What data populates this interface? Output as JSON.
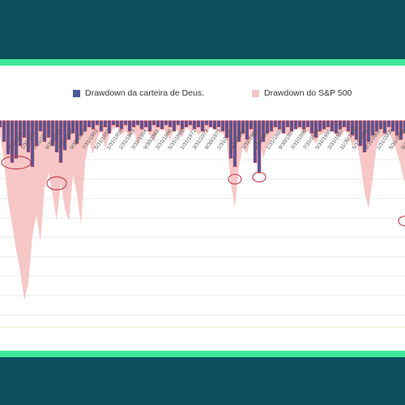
{
  "colors": {
    "frame": "#0b4f5c",
    "accent": "#3ee89a",
    "portfolio_fill": "#4a5a9c",
    "portfolio_edge": "#d0344a",
    "sp_fill": "#f7c4c4",
    "highlight_ellipse": "#c8424e"
  },
  "legend": {
    "portfolio_label": "Drawdown da carteira de Deus.",
    "sp_label": "Drawdown do S&P 500"
  },
  "chart_data": {
    "type": "area",
    "title": "",
    "xlabel": "",
    "ylabel": "",
    "grid": true,
    "legend_position": "top",
    "x_tick_labels": [
      "3/31/191",
      "1/31/193",
      "7/31/19",
      "9/30/1947",
      "3/31/1949",
      "9/30/1950",
      "7/31/1953",
      "5/31/1957",
      "1/31/1959",
      "1/31/1963",
      "3/31/1964",
      "9/30/1961",
      "3/31/1966",
      "5/31/1968",
      "1/31/1971",
      "3/31/1973",
      "9/30/1975",
      "1/31/1977",
      "5/31/1980",
      "1/31/1982",
      "9/30/1983",
      "1/31/1986",
      "9/30/1987",
      "3/31/1990",
      "7/31/1994",
      "5/31/1995",
      "3/31/1997",
      "11/30/1999",
      "5/31/2000",
      "3/31/2002",
      "1/31/2005",
      "5/31/2006",
      "9/30/2008"
    ],
    "series": [
      {
        "name": "Drawdown do S&P 500",
        "role": "area",
        "values": [
          0.06,
          0.2,
          0.38,
          0.5,
          0.62,
          0.72,
          0.86,
          0.78,
          0.55,
          0.45,
          0.58,
          0.32,
          0.25,
          0.36,
          0.48,
          0.3,
          0.42,
          0.48,
          0.26,
          0.35,
          0.5,
          0.2,
          0.1,
          0.16,
          0.08,
          0.05,
          0.14,
          0.06,
          0.04,
          0.03,
          0.07,
          0.05,
          0.08,
          0.04,
          0.12,
          0.06,
          0.04,
          0.07,
          0.1,
          0.05,
          0.03,
          0.06,
          0.09,
          0.04,
          0.05,
          0.08,
          0.03,
          0.05,
          0.04,
          0.07,
          0.05,
          0.06,
          0.03,
          0.04,
          0.05,
          0.06,
          0.1,
          0.3,
          0.42,
          0.22,
          0.12,
          0.16,
          0.08,
          0.07,
          0.1,
          0.18,
          0.12,
          0.09,
          0.06,
          0.04,
          0.05,
          0.07,
          0.05,
          0.03,
          0.04,
          0.06,
          0.05,
          0.08,
          0.11,
          0.07,
          0.06,
          0.04,
          0.05,
          0.07,
          0.08,
          0.05,
          0.06,
          0.12,
          0.09,
          0.2,
          0.34,
          0.42,
          0.28,
          0.12,
          0.08,
          0.07,
          0.05,
          0.1,
          0.15,
          0.22,
          0.3
        ]
      },
      {
        "name": "Drawdown da carteira de Deus.",
        "role": "bars",
        "values": [
          0.03,
          0.1,
          0.16,
          0.2,
          0.18,
          0.12,
          0.08,
          0.15,
          0.22,
          0.12,
          0.05,
          0.1,
          0.08,
          0.12,
          0.15,
          0.2,
          0.14,
          0.09,
          0.06,
          0.11,
          0.07,
          0.05,
          0.03,
          0.04,
          0.02,
          0.05,
          0.03,
          0.06,
          0.02,
          0.03,
          0.04,
          0.02,
          0.05,
          0.03,
          0.02,
          0.04,
          0.03,
          0.05,
          0.02,
          0.03,
          0.04,
          0.02,
          0.03,
          0.05,
          0.02,
          0.04,
          0.03,
          0.02,
          0.04,
          0.03,
          0.05,
          0.02,
          0.03,
          0.04,
          0.03,
          0.05,
          0.08,
          0.18,
          0.22,
          0.1,
          0.06,
          0.09,
          0.04,
          0.2,
          0.25,
          0.1,
          0.06,
          0.05,
          0.03,
          0.04,
          0.06,
          0.03,
          0.05,
          0.04,
          0.03,
          0.04,
          0.03,
          0.06,
          0.08,
          0.05,
          0.04,
          0.03,
          0.05,
          0.06,
          0.04,
          0.03,
          0.05,
          0.07,
          0.09,
          0.12,
          0.15,
          0.1,
          0.07,
          0.05,
          0.04,
          0.06,
          0.03,
          0.05,
          0.07,
          0.09,
          0.06
        ]
      }
    ],
    "highlighted_points": [
      {
        "index": 4,
        "value": 0.2
      },
      {
        "index": 14,
        "value": 0.3
      },
      {
        "index": 58,
        "value": 0.28
      },
      {
        "index": 64,
        "value": 0.27
      },
      {
        "index": 100,
        "value": 0.48
      }
    ]
  }
}
